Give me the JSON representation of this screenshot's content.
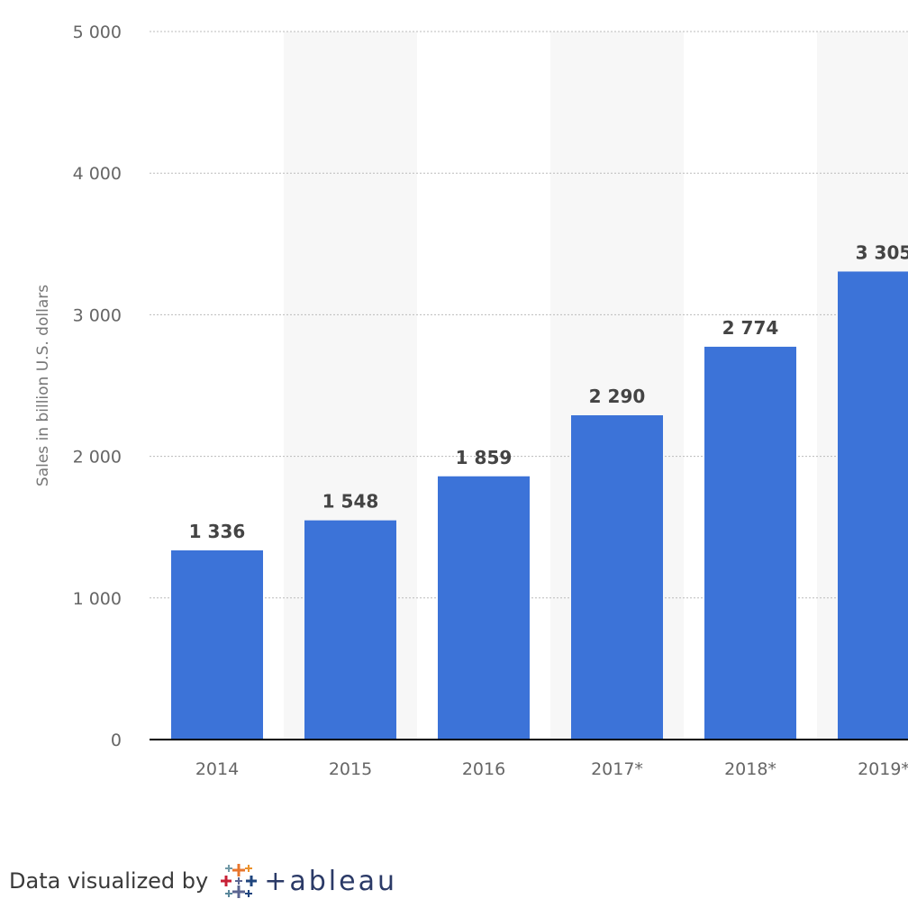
{
  "chart_data": {
    "type": "bar",
    "ylabel": "Sales in billion U.S. dollars",
    "categories": [
      "2014",
      "2015",
      "2016",
      "2017*",
      "2018*",
      "2019*"
    ],
    "values": [
      1336,
      1548,
      1859,
      2290,
      2774,
      3305
    ],
    "value_labels": [
      "1 336",
      "1 548",
      "1 859",
      "2 290",
      "2 774",
      "3 305"
    ],
    "ylim": [
      0,
      5000
    ],
    "yticks": [
      0,
      1000,
      2000,
      3000,
      4000,
      5000
    ],
    "ytick_labels": [
      "0",
      "1 000",
      "2 000",
      "3 000",
      "4 000",
      "5 000"
    ],
    "grid": true,
    "bar_color": "#3c73d8",
    "band_color": "#f7f7f7"
  },
  "footer": {
    "text": "Data visualized by",
    "brand": "+ableau"
  }
}
